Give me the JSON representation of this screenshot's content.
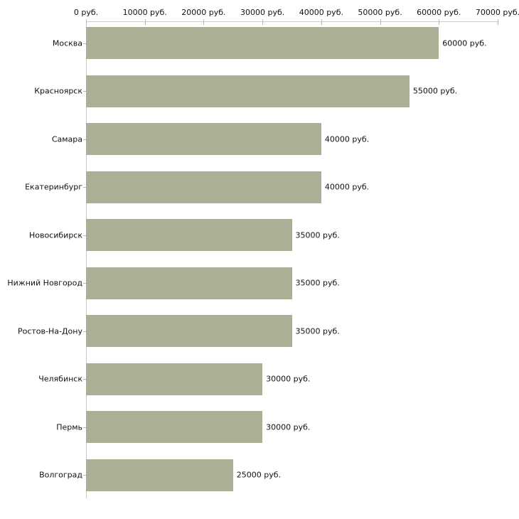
{
  "chart_data": {
    "type": "bar",
    "orientation": "horizontal",
    "title": "",
    "xlabel": "",
    "ylabel": "",
    "unit": "руб.",
    "categories": [
      "Москва",
      "Красноярск",
      "Самара",
      "Екатеринбург",
      "Новосибирск",
      "Нижний Новгород",
      "Ростов-На-Дону",
      "Челябинск",
      "Пермь",
      "Волгоград"
    ],
    "values": [
      60000,
      55000,
      40000,
      40000,
      35000,
      35000,
      35000,
      30000,
      30000,
      25000
    ],
    "value_labels": [
      "60000 руб.",
      "55000 руб.",
      "40000 руб.",
      "40000 руб.",
      "35000 руб.",
      "35000 руб.",
      "35000 руб.",
      "30000 руб.",
      "30000 руб.",
      "25000 руб."
    ],
    "x_tick_values": [
      0,
      10000,
      20000,
      30000,
      40000,
      50000,
      60000,
      70000
    ],
    "x_tick_labels": [
      "0 руб.",
      "10000 руб.",
      "20000 руб.",
      "30000 руб.",
      "40000 руб.",
      "50000 руб.",
      "60000 руб.",
      "70000 руб."
    ],
    "xlim": [
      0,
      70000
    ],
    "grid": false,
    "legend": false,
    "colors": {
      "bar": "#aab096",
      "axis_line": "#c9c9c9",
      "tick": "#bcbc94",
      "text": "#111111",
      "background": "#ffffff"
    }
  }
}
